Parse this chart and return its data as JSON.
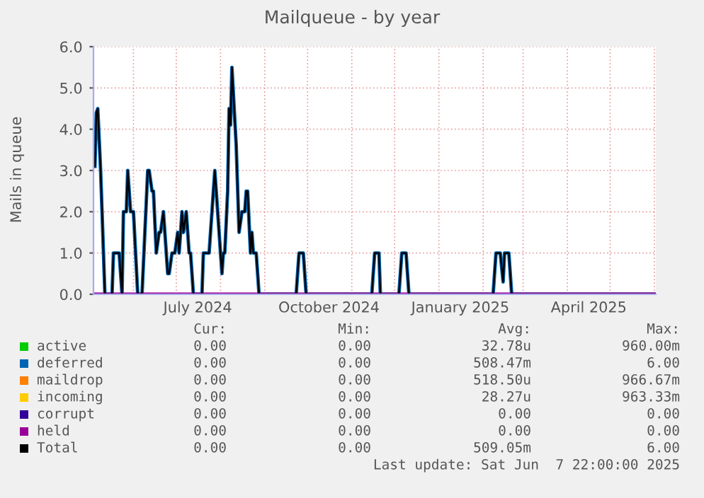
{
  "chart_data": {
    "type": "line",
    "title": "Mailqueue - by year",
    "ylabel": "Mails in queue",
    "xlim": [
      "2024-05-04",
      "2025-06-02"
    ],
    "ylim": [
      0,
      6
    ],
    "yticks": [
      {
        "value": 0,
        "label": "0.0"
      },
      {
        "value": 1,
        "label": "1.0"
      },
      {
        "value": 2,
        "label": "2.0"
      },
      {
        "value": 3,
        "label": "3.0"
      },
      {
        "value": 4,
        "label": "4.0"
      },
      {
        "value": 5,
        "label": "5.0"
      },
      {
        "value": 6,
        "label": "6.0"
      }
    ],
    "xticks": [
      {
        "value": "2024-06-01",
        "label": null
      },
      {
        "value": "2024-07-01",
        "label": null
      },
      {
        "value": "2024-07-16",
        "label": "July 2024"
      },
      {
        "value": "2024-08-01",
        "label": null
      },
      {
        "value": "2024-09-01",
        "label": null
      },
      {
        "value": "2024-10-01",
        "label": null
      },
      {
        "value": "2024-10-16",
        "label": "October 2024"
      },
      {
        "value": "2024-11-01",
        "label": null
      },
      {
        "value": "2024-12-01",
        "label": null
      },
      {
        "value": "2025-01-01",
        "label": null
      },
      {
        "value": "2025-01-16",
        "label": "January 2025"
      },
      {
        "value": "2025-02-01",
        "label": null
      },
      {
        "value": "2025-03-01",
        "label": null
      },
      {
        "value": "2025-04-01",
        "label": null
      },
      {
        "value": "2025-04-16",
        "label": "April 2025"
      },
      {
        "value": "2025-05-01",
        "label": null
      },
      {
        "value": "2025-06-01",
        "label": null
      }
    ],
    "grid": true,
    "legend": "bottom",
    "series": [
      {
        "name": "active",
        "color": "#00cc00"
      },
      {
        "name": "deferred",
        "color": "#0066b3",
        "x": [
          "2024-05-05",
          "2024-05-06",
          "2024-05-07",
          "2024-05-09",
          "2024-05-11",
          "2024-05-12",
          "2024-05-17",
          "2024-05-18",
          "2024-05-22",
          "2024-05-24",
          "2024-05-25",
          "2024-05-27",
          "2024-05-28",
          "2024-05-30",
          "2024-06-01",
          "2024-06-04",
          "2024-06-07",
          "2024-06-11",
          "2024-06-12",
          "2024-06-14",
          "2024-06-15",
          "2024-06-17",
          "2024-06-19",
          "2024-06-20",
          "2024-06-22",
          "2024-06-23",
          "2024-06-25",
          "2024-06-26",
          "2024-06-28",
          "2024-06-30",
          "2024-07-02",
          "2024-07-03",
          "2024-07-05",
          "2024-07-06",
          "2024-07-08",
          "2024-07-10",
          "2024-07-11",
          "2024-07-13",
          "2024-07-19",
          "2024-07-20",
          "2024-07-24",
          "2024-07-26",
          "2024-07-28",
          "2024-07-30",
          "2024-08-01",
          "2024-08-02",
          "2024-08-03",
          "2024-08-04",
          "2024-08-06",
          "2024-08-07",
          "2024-08-08",
          "2024-08-09",
          "2024-08-12",
          "2024-08-14",
          "2024-08-16",
          "2024-08-18",
          "2024-08-19",
          "2024-08-20",
          "2024-08-22",
          "2024-08-23",
          "2024-08-24",
          "2024-08-26",
          "2024-08-28",
          "2024-09-23",
          "2024-09-25",
          "2024-09-28",
          "2024-09-30",
          "2024-11-15",
          "2024-11-17",
          "2024-11-20",
          "2024-11-21",
          "2024-12-04",
          "2024-12-06",
          "2024-12-09",
          "2024-12-11",
          "2025-02-08",
          "2025-02-10",
          "2025-02-13",
          "2025-02-15",
          "2025-02-16",
          "2025-02-19",
          "2025-02-21",
          "2025-06-01"
        ],
        "values": [
          3.1,
          4.4,
          4.5,
          3.0,
          1.0,
          0,
          0,
          1,
          1,
          0,
          2,
          2,
          3,
          2,
          2,
          0,
          0,
          3,
          3,
          2.5,
          2.5,
          1,
          1.5,
          1.5,
          2,
          1.5,
          0.5,
          0.5,
          1,
          1,
          1.5,
          1,
          2,
          1.5,
          2,
          1,
          1,
          0,
          0,
          1,
          1,
          2,
          3,
          2,
          1,
          0.5,
          1,
          1,
          2.5,
          4.5,
          4.1,
          5.5,
          3.6,
          1.5,
          2,
          2,
          2.5,
          2.5,
          1,
          1.5,
          1,
          1,
          0,
          0,
          1,
          1,
          0,
          0,
          1,
          1,
          0,
          0,
          1,
          1,
          0,
          0,
          1,
          1,
          0.3,
          1,
          1,
          0,
          0
        ]
      },
      {
        "name": "maildrop",
        "color": "#ff8000"
      },
      {
        "name": "incoming",
        "color": "#ffcc00"
      },
      {
        "name": "corrupt",
        "color": "#330099"
      },
      {
        "name": "held",
        "color": "#990099",
        "x": [
          "2024-05-05",
          "2025-06-01"
        ],
        "values": [
          0,
          0
        ]
      },
      {
        "name": "Total",
        "color": "#000000",
        "x": [
          "2024-05-05",
          "2024-05-06",
          "2024-05-07",
          "2024-05-09",
          "2024-05-11",
          "2024-05-12",
          "2024-05-17",
          "2024-05-18",
          "2024-05-22",
          "2024-05-24",
          "2024-05-25",
          "2024-05-27",
          "2024-05-28",
          "2024-05-30",
          "2024-06-01",
          "2024-06-04",
          "2024-06-07",
          "2024-06-11",
          "2024-06-12",
          "2024-06-14",
          "2024-06-15",
          "2024-06-17",
          "2024-06-19",
          "2024-06-20",
          "2024-06-22",
          "2024-06-23",
          "2024-06-25",
          "2024-06-26",
          "2024-06-28",
          "2024-06-30",
          "2024-07-02",
          "2024-07-03",
          "2024-07-05",
          "2024-07-06",
          "2024-07-08",
          "2024-07-10",
          "2024-07-11",
          "2024-07-13",
          "2024-07-19",
          "2024-07-20",
          "2024-07-24",
          "2024-07-26",
          "2024-07-28",
          "2024-07-30",
          "2024-08-01",
          "2024-08-02",
          "2024-08-03",
          "2024-08-04",
          "2024-08-06",
          "2024-08-07",
          "2024-08-08",
          "2024-08-09",
          "2024-08-12",
          "2024-08-14",
          "2024-08-16",
          "2024-08-18",
          "2024-08-19",
          "2024-08-20",
          "2024-08-22",
          "2024-08-23",
          "2024-08-24",
          "2024-08-26",
          "2024-08-28",
          "2024-09-23",
          "2024-09-25",
          "2024-09-28",
          "2024-09-30",
          "2024-11-15",
          "2024-11-17",
          "2024-11-20",
          "2024-11-21",
          "2024-12-04",
          "2024-12-06",
          "2024-12-09",
          "2024-12-11",
          "2025-02-08",
          "2025-02-10",
          "2025-02-13",
          "2025-02-15",
          "2025-02-16",
          "2025-02-19",
          "2025-02-21",
          "2025-06-01"
        ],
        "values": [
          3.1,
          4.4,
          4.5,
          3.0,
          1.0,
          0,
          0,
          1,
          1,
          0,
          2,
          2,
          3,
          2,
          2,
          0,
          0,
          3,
          3,
          2.5,
          2.5,
          1,
          1.5,
          1.5,
          2,
          1.5,
          0.5,
          0.5,
          1,
          1,
          1.5,
          1,
          2,
          1.5,
          2,
          1,
          1,
          0,
          0,
          1,
          1,
          2,
          3,
          2,
          1,
          0.5,
          1,
          1,
          2.5,
          4.5,
          4.1,
          5.5,
          3.6,
          1.5,
          2,
          2,
          2.5,
          2.5,
          1,
          1.5,
          1,
          1,
          0,
          0,
          1,
          1,
          0,
          0,
          1,
          1,
          0,
          0,
          1,
          1,
          0,
          0,
          1,
          1,
          0.3,
          1,
          1,
          0,
          0
        ]
      }
    ],
    "annotations": [
      "Cur:",
      "Min:",
      "Avg:",
      "Max:",
      "0.00",
      "0.00",
      "32.78u",
      "960.00m",
      "0.00",
      "0.00",
      "508.47m",
      "6.00",
      "0.00",
      "0.00",
      "518.50u",
      "966.67m",
      "0.00",
      "0.00",
      "28.27u",
      "963.33m",
      "0.00",
      "0.00",
      "0.00",
      "0.00",
      "0.00",
      "0.00",
      "0.00",
      "0.00",
      "0.00",
      "0.00",
      "509.05m",
      "6.00",
      "Last update: Sat Jun  7 22:00:00 2025"
    ]
  }
}
